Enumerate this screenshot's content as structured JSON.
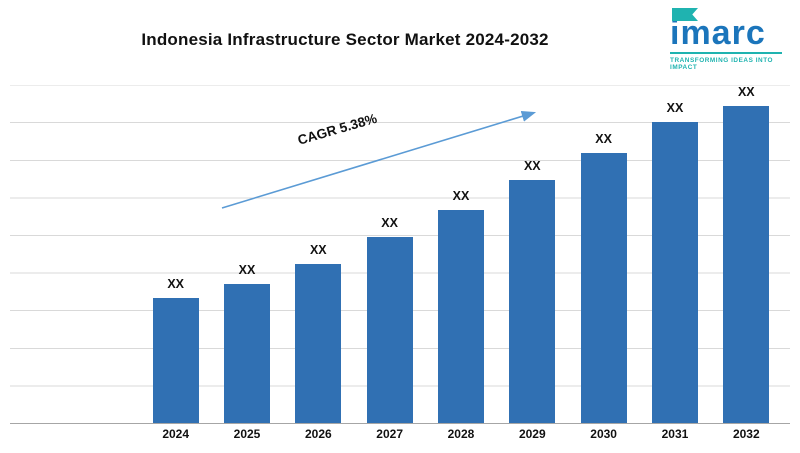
{
  "title": "Indonesia Infrastructure Sector Market 2024-2032",
  "logo": {
    "name": "imarc",
    "tagline": "TRANSFORMING IDEAS INTO IMPACT",
    "brand_blue": "#1b75bb",
    "brand_teal": "#1fb3b0"
  },
  "chart_data": {
    "type": "bar",
    "title": "Indonesia Infrastructure Sector Market 2024-2032",
    "categories": [
      "2024",
      "2025",
      "2026",
      "2027",
      "2028",
      "2029",
      "2030",
      "2031",
      "2032"
    ],
    "values": [
      37,
      41,
      47,
      55,
      63,
      72,
      80,
      89,
      96
    ],
    "bar_label": "XX",
    "annotation": "CAGR 5.38%",
    "bar_color": "#3070b3",
    "grid_color": "#d9d9d9",
    "trend_arrow_color": "#5b9bd5",
    "xlabel": "",
    "ylabel": "",
    "ylim": [
      0,
      100
    ],
    "grid": true,
    "legend": false
  }
}
